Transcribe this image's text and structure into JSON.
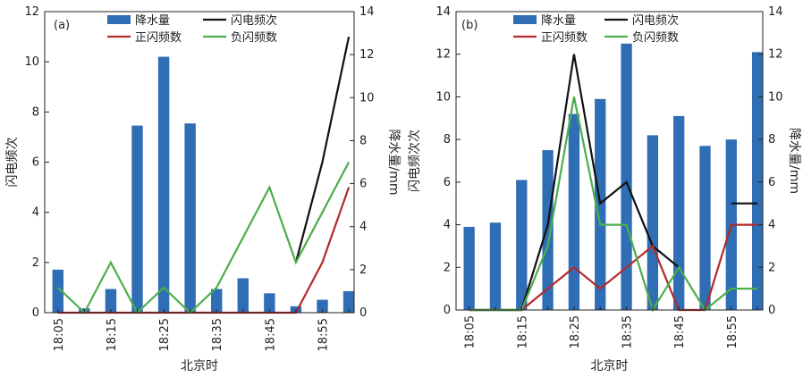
{
  "chart_data": [
    {
      "type": "bar+line",
      "panel_label": "(a)",
      "categories": [
        "18:05",
        "18:10",
        "18:15",
        "18:20",
        "18:25",
        "18:30",
        "18:35",
        "18:40",
        "18:45",
        "18:50",
        "18:55",
        "19:00"
      ],
      "x_tick_labels": [
        "18:05",
        "18:15",
        "18:25",
        "18:35",
        "18:45",
        "18:55"
      ],
      "xlabel": "北京时",
      "y_left_label": "闪电频次",
      "y_left_lim": [
        0,
        12
      ],
      "y_left_ticks": [
        0,
        2,
        4,
        6,
        8,
        10,
        12
      ],
      "y_right_label": "降水量/mm",
      "y_right_lim": [
        0,
        14
      ],
      "y_right_ticks": [
        0,
        2,
        4,
        6,
        8,
        10,
        12,
        14
      ],
      "bars": {
        "name": "降水量",
        "axis": "right",
        "color": "#2f6db5",
        "values": [
          2.0,
          0.2,
          1.1,
          8.7,
          11.9,
          8.8,
          1.1,
          1.6,
          0.9,
          0.3,
          0.6,
          1.0
        ]
      },
      "series": [
        {
          "name": "闪电频次",
          "axis": "left",
          "color": "#111111",
          "values": [
            null,
            null,
            null,
            null,
            null,
            null,
            null,
            null,
            null,
            2.0,
            6.0,
            11.0
          ]
        },
        {
          "name": "正闪频数",
          "axis": "left",
          "color": "#b22a2a",
          "values": [
            0,
            0,
            0,
            0,
            0,
            0,
            0,
            0,
            0,
            0,
            2.0,
            5.0
          ]
        },
        {
          "name": "负闪频数",
          "axis": "left",
          "color": "#4cae4c",
          "values": [
            1.0,
            0,
            2.0,
            0,
            1.0,
            0,
            1.0,
            3.0,
            5.0,
            2.0,
            4.0,
            6.0
          ]
        }
      ],
      "legend": [
        "降水量",
        "闪电频次",
        "正闪频数",
        "负闪频数"
      ]
    },
    {
      "type": "bar+line",
      "panel_label": "(b)",
      "categories": [
        "18:05",
        "18:10",
        "18:15",
        "18:20",
        "18:25",
        "18:30",
        "18:35",
        "18:40",
        "18:45",
        "18:50",
        "18:55",
        "19:00"
      ],
      "x_tick_labels": [
        "18:05",
        "18:15",
        "18:25",
        "18:35",
        "18:45",
        "18:55"
      ],
      "xlabel": "北京时",
      "y_left_label": "闪电频次次",
      "y_left_lim": [
        0,
        14
      ],
      "y_left_ticks": [
        0,
        2,
        4,
        6,
        8,
        10,
        12,
        14
      ],
      "y_right_label": "降水量/mm",
      "y_right_lim": [
        0,
        14
      ],
      "y_right_ticks": [
        0,
        2,
        4,
        6,
        8,
        10,
        12,
        14
      ],
      "bars": {
        "name": "降水量",
        "axis": "right",
        "color": "#2f6db5",
        "values": [
          3.9,
          4.1,
          6.1,
          7.5,
          9.2,
          9.9,
          12.5,
          8.2,
          9.1,
          7.7,
          8.0,
          12.1
        ]
      },
      "series": [
        {
          "name": "闪电频次",
          "axis": "left",
          "color": "#111111",
          "values": [
            0,
            0,
            0,
            4.0,
            12.0,
            5.0,
            6.0,
            3.0,
            2.0,
            null,
            5.0,
            5.0
          ]
        },
        {
          "name": "正闪频数",
          "axis": "left",
          "color": "#b22a2a",
          "values": [
            0,
            0,
            0,
            1.0,
            2.0,
            1.0,
            2.0,
            3.0,
            0,
            0,
            4.0,
            4.0
          ]
        },
        {
          "name": "负闪频数",
          "axis": "left",
          "color": "#4cae4c",
          "values": [
            0,
            0,
            0,
            3.0,
            10.0,
            4.0,
            4.0,
            0,
            2.0,
            0,
            1.0,
            1.0
          ]
        }
      ],
      "legend": [
        "降水量",
        "闪电频次",
        "正闪频数",
        "负闪频数"
      ]
    }
  ]
}
